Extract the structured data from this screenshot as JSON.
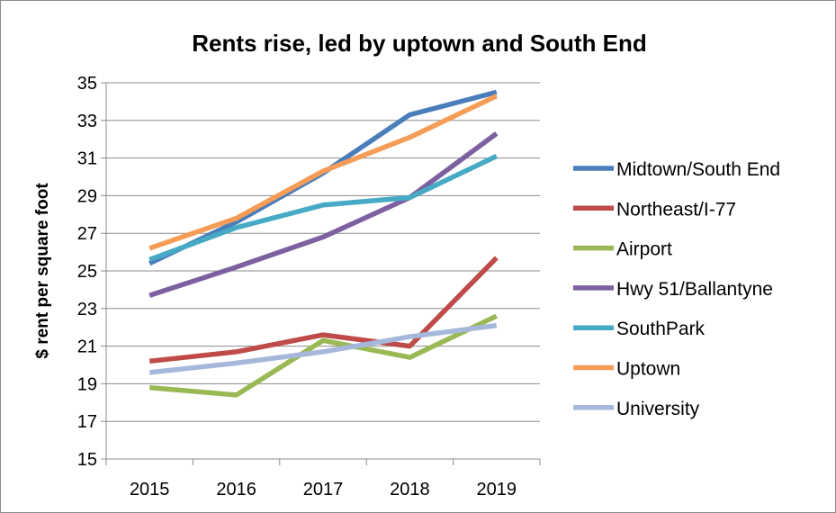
{
  "chart_data": {
    "type": "line",
    "title": "Rents rise, led by uptown and South End",
    "xlabel": "",
    "ylabel": "$ rent per square foot",
    "categories": [
      "2015",
      "2016",
      "2017",
      "2018",
      "2019"
    ],
    "ylim": [
      15,
      35
    ],
    "yticks": [
      "15",
      "17",
      "19",
      "21",
      "23",
      "25",
      "27",
      "29",
      "31",
      "33",
      "35"
    ],
    "grid": true,
    "legend_position": "right",
    "series": [
      {
        "name": "Midtown/South End",
        "color": "#4a7ebb",
        "values": [
          25.4,
          27.6,
          30.2,
          33.3,
          34.5
        ]
      },
      {
        "name": "Northeast/I-77",
        "color": "#be4b48",
        "values": [
          20.2,
          20.7,
          21.6,
          21.0,
          25.7
        ]
      },
      {
        "name": "Airport",
        "color": "#98b954",
        "values": [
          18.8,
          18.4,
          21.3,
          20.4,
          22.6
        ]
      },
      {
        "name": "Hwy 51/Ballantyne",
        "color": "#7d60a0",
        "values": [
          23.7,
          25.2,
          26.8,
          28.9,
          32.3
        ]
      },
      {
        "name": "SouthPark",
        "color": "#46aac5",
        "values": [
          25.6,
          27.3,
          28.5,
          28.9,
          31.1
        ]
      },
      {
        "name": "Uptown",
        "color": "#f59d56",
        "values": [
          26.2,
          27.8,
          30.3,
          32.1,
          34.3
        ]
      },
      {
        "name": "University",
        "color": "#a5b8db",
        "values": [
          19.6,
          20.1,
          20.7,
          21.5,
          22.1
        ]
      }
    ]
  }
}
